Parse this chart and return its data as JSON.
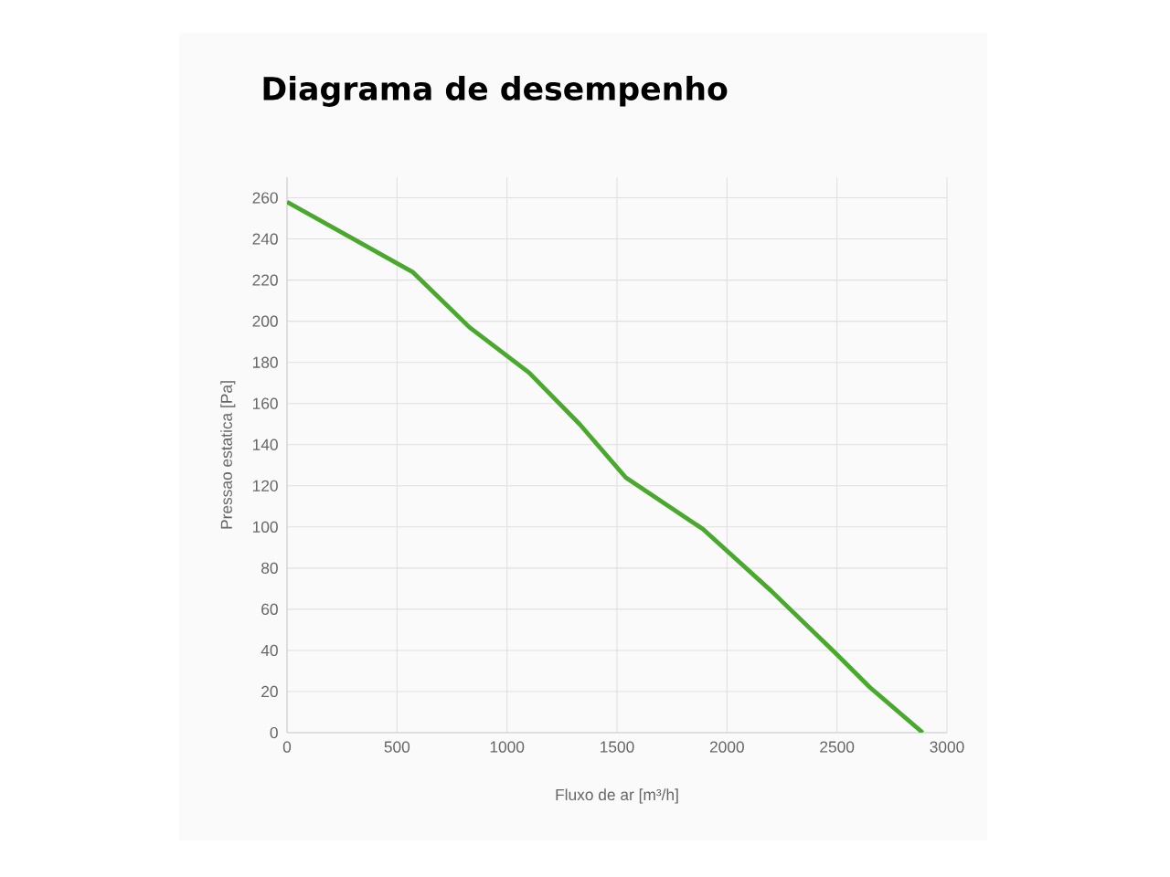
{
  "chart_data": {
    "type": "line",
    "title": "Diagrama de desempenho",
    "xlabel": "Fluxo de ar [m³/h]",
    "ylabel": "Pressao estatica [Pa]",
    "x": [
      0,
      570,
      830,
      1100,
      1330,
      1540,
      1890,
      2200,
      2500,
      2650,
      2890
    ],
    "series": [
      {
        "color": "#4aa82e",
        "values": [
          258,
          224,
          197,
          175,
          150,
          124,
          99,
          69,
          38,
          22,
          0
        ]
      }
    ],
    "xlim": [
      0,
      3000
    ],
    "ylim": [
      0,
      270
    ],
    "xticks": [
      0,
      500,
      1000,
      1500,
      2000,
      2500,
      3000
    ],
    "yticks": [
      0,
      20,
      40,
      60,
      80,
      100,
      120,
      140,
      160,
      180,
      200,
      220,
      240,
      260
    ],
    "grid": true,
    "marker": "none",
    "line_style": "solid"
  }
}
